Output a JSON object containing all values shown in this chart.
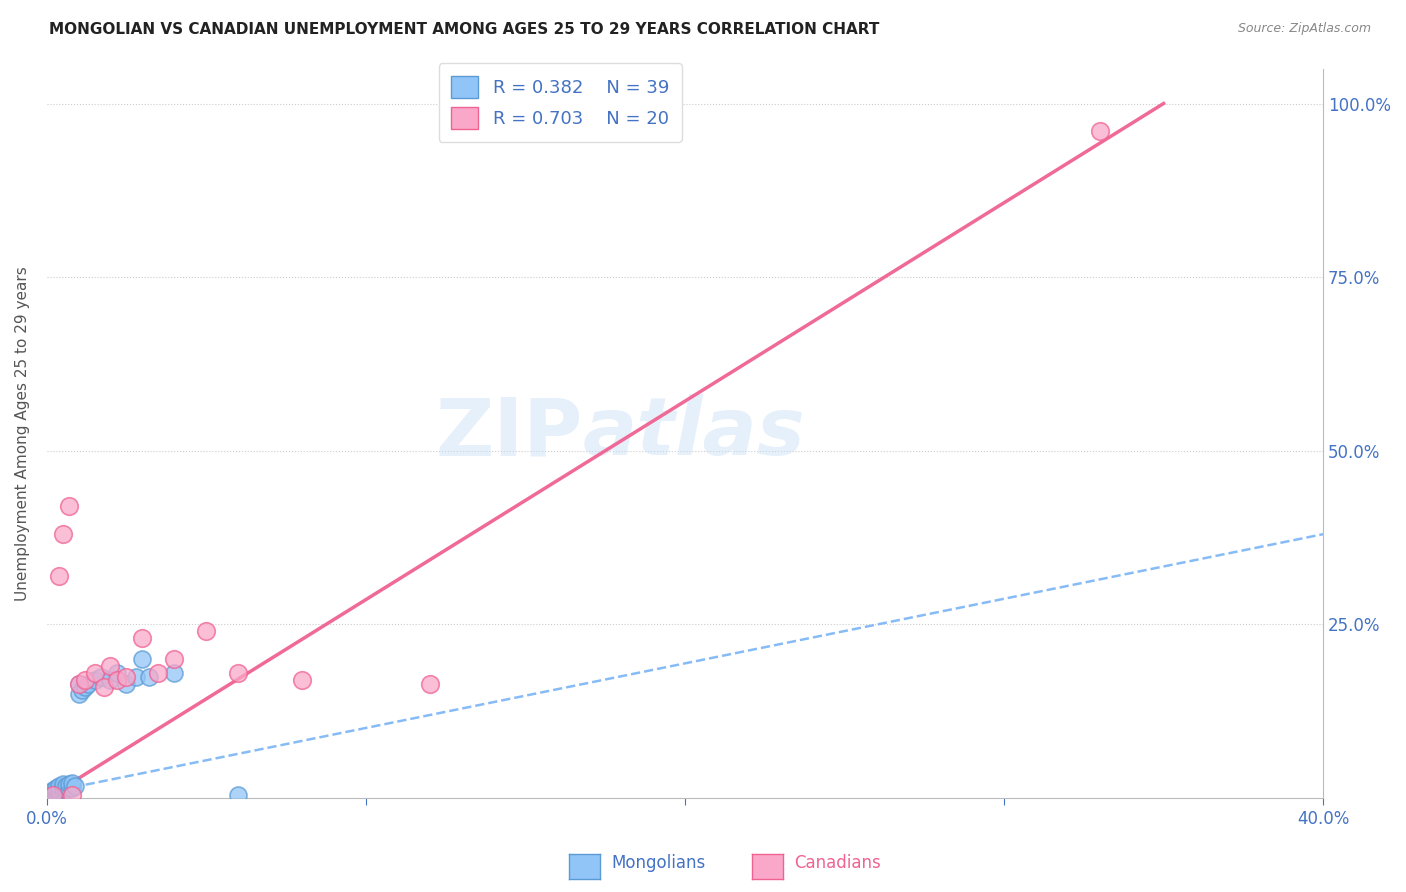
{
  "title": "MONGOLIAN VS CANADIAN UNEMPLOYMENT AMONG AGES 25 TO 29 YEARS CORRELATION CHART",
  "source": "Source: ZipAtlas.com",
  "ylabel": "Unemployment Among Ages 25 to 29 years",
  "xmin": 0.0,
  "xmax": 0.4,
  "ymin": 0.0,
  "ymax": 1.05,
  "legend_r1": "R = 0.382",
  "legend_n1": "N = 39",
  "legend_r2": "R = 0.703",
  "legend_n2": "N = 20",
  "mongolian_color": "#92c5f7",
  "canadian_color": "#f9a8c9",
  "mongolian_edge": "#5b9bd5",
  "canadian_edge": "#f06292",
  "trendline_mongolian_color": "#7ab4f5",
  "trendline_canadian_color": "#f06292",
  "watermark_zip": "ZIP",
  "watermark_atlas": "atlas",
  "mongolian_x": [
    0.001,
    0.001,
    0.001,
    0.002,
    0.002,
    0.002,
    0.002,
    0.003,
    0.003,
    0.003,
    0.003,
    0.004,
    0.004,
    0.004,
    0.005,
    0.005,
    0.005,
    0.006,
    0.006,
    0.007,
    0.007,
    0.008,
    0.008,
    0.009,
    0.01,
    0.01,
    0.011,
    0.012,
    0.013,
    0.015,
    0.017,
    0.02,
    0.022,
    0.025,
    0.028,
    0.03,
    0.032,
    0.04,
    0.06
  ],
  "mongolian_y": [
    0.003,
    0.005,
    0.008,
    0.004,
    0.006,
    0.01,
    0.012,
    0.005,
    0.008,
    0.012,
    0.015,
    0.008,
    0.012,
    0.018,
    0.01,
    0.015,
    0.02,
    0.012,
    0.018,
    0.015,
    0.02,
    0.015,
    0.022,
    0.018,
    0.15,
    0.165,
    0.155,
    0.16,
    0.165,
    0.17,
    0.175,
    0.17,
    0.18,
    0.165,
    0.175,
    0.2,
    0.175,
    0.18,
    0.005
  ],
  "canadian_x": [
    0.002,
    0.004,
    0.005,
    0.007,
    0.008,
    0.01,
    0.012,
    0.015,
    0.018,
    0.02,
    0.022,
    0.025,
    0.03,
    0.035,
    0.04,
    0.05,
    0.06,
    0.08,
    0.12,
    0.33
  ],
  "canadian_y": [
    0.005,
    0.32,
    0.38,
    0.42,
    0.005,
    0.165,
    0.17,
    0.18,
    0.16,
    0.19,
    0.17,
    0.175,
    0.23,
    0.18,
    0.2,
    0.24,
    0.18,
    0.17,
    0.165,
    0.96
  ],
  "mongolian_trend_x0": 0.0,
  "mongolian_trend_y0": 0.008,
  "mongolian_trend_x1": 0.4,
  "mongolian_trend_y1": 0.38,
  "canadian_trend_x0": 0.0,
  "canadian_trend_y0": 0.0,
  "canadian_trend_x1": 0.35,
  "canadian_trend_y1": 1.0
}
